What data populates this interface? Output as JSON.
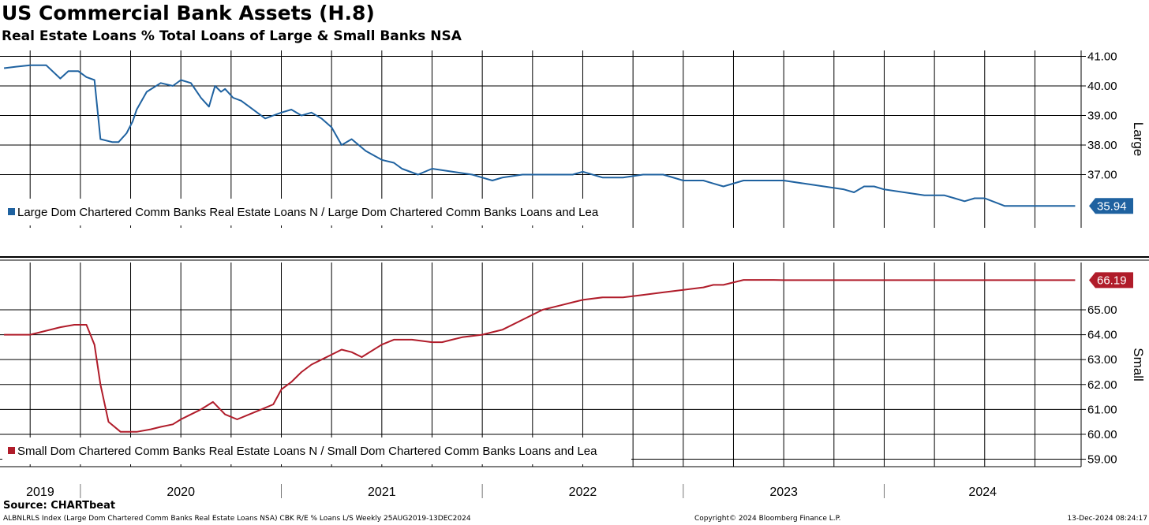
{
  "title": "US Commercial Bank Assets (H.8)",
  "subtitle": "Real Estate Loans % Total Loans of Large & Small Banks NSA",
  "footer": {
    "source": "Source: CHARTbeat",
    "index_info": "ALBNLRLS Index (Large Dom Chartered Comm Banks Real Estate Loans NSA) CBK R/E % Loans L/S  Weekly 25AUG2019-13DEC2024",
    "copyright": "Copyright© 2024 Bloomberg Finance L.P.",
    "timestamp": "13-Dec-2024 08:24:17"
  },
  "colors": {
    "large": "#1f62a0",
    "small": "#b01c2a",
    "grid": "#000000"
  },
  "chart_data": [
    {
      "type": "line",
      "panel": "top",
      "axis_side_label": "Large",
      "legend": "Large Dom Chartered Comm Banks Real Estate Loans N / Large Dom Chartered Comm Banks Loans and Lea",
      "ylim": [
        35.2,
        41.2
      ],
      "yticks": [
        "41.00",
        "40.00",
        "39.00",
        "38.00",
        "37.00"
      ],
      "ytick_values": [
        41,
        40,
        39,
        38,
        37
      ],
      "last_value": "35.94",
      "xlim": [
        2019.6,
        2024.98
      ],
      "x_labels": [
        "2019",
        "2020",
        "2021",
        "2022",
        "2023",
        "2024"
      ],
      "series": [
        {
          "name": "Large",
          "x": [
            2019.62,
            2019.68,
            2019.75,
            2019.83,
            2019.9,
            2019.94,
            2019.96,
            2019.99,
            2020.03,
            2020.07,
            2020.1,
            2020.16,
            2020.19,
            2020.23,
            2020.26,
            2020.28,
            2020.33,
            2020.4,
            2020.46,
            2020.5,
            2020.55,
            2020.6,
            2020.64,
            2020.67,
            2020.7,
            2020.72,
            2020.76,
            2020.8,
            2020.84,
            2020.88,
            2020.92,
            2020.96,
            2021.0,
            2021.05,
            2021.1,
            2021.15,
            2021.2,
            2021.25,
            2021.3,
            2021.35,
            2021.42,
            2021.5,
            2021.56,
            2021.6,
            2021.68,
            2021.75,
            2021.85,
            2021.95,
            2022.0,
            2022.05,
            2022.1,
            2022.2,
            2022.3,
            2022.4,
            2022.45,
            2022.5,
            2022.6,
            2022.7,
            2022.8,
            2022.9,
            2023.0,
            2023.1,
            2023.15,
            2023.2,
            2023.3,
            2023.4,
            2023.45,
            2023.5,
            2023.6,
            2023.7,
            2023.8,
            2023.85,
            2023.9,
            2023.95,
            2024.0,
            2024.1,
            2024.2,
            2024.3,
            2024.35,
            2024.4,
            2024.45,
            2024.5,
            2024.6,
            2024.65,
            2024.7,
            2024.75,
            2024.8,
            2024.85,
            2024.9,
            2024.95
          ],
          "values": [
            40.6,
            40.65,
            40.7,
            40.7,
            40.25,
            40.5,
            40.5,
            40.5,
            40.3,
            40.2,
            38.2,
            38.1,
            38.1,
            38.4,
            38.8,
            39.2,
            39.8,
            40.1,
            40.0,
            40.2,
            40.1,
            39.6,
            39.3,
            40.0,
            39.8,
            39.9,
            39.6,
            39.5,
            39.3,
            39.1,
            38.9,
            39.0,
            39.1,
            39.2,
            39.0,
            39.1,
            38.9,
            38.6,
            38.0,
            38.2,
            37.8,
            37.5,
            37.4,
            37.2,
            37.0,
            37.2,
            37.1,
            37.0,
            36.9,
            36.8,
            36.9,
            37.0,
            37.0,
            37.0,
            37.0,
            37.1,
            36.9,
            36.9,
            37.0,
            37.0,
            36.8,
            36.8,
            36.7,
            36.6,
            36.8,
            36.8,
            36.8,
            36.8,
            36.7,
            36.6,
            36.5,
            36.4,
            36.6,
            36.6,
            36.5,
            36.4,
            36.3,
            36.3,
            36.2,
            36.1,
            36.2,
            36.2,
            35.94,
            35.94,
            35.94,
            35.94,
            35.94,
            35.94,
            35.94,
            35.94
          ]
        }
      ]
    },
    {
      "type": "line",
      "panel": "bottom",
      "axis_side_label": "Small",
      "legend": "Small Dom Chartered Comm Banks Real Estate Loans N / Small Dom Chartered Comm Banks Loans and Lea",
      "ylim": [
        58.7,
        66.9
      ],
      "yticks": [
        "65.00",
        "64.00",
        "63.00",
        "62.00",
        "61.00",
        "60.00",
        "59.00"
      ],
      "ytick_values": [
        65,
        64,
        63,
        62,
        61,
        60,
        59
      ],
      "last_value": "66.19",
      "xlim": [
        2019.6,
        2024.98
      ],
      "x_labels": [
        "2019",
        "2020",
        "2021",
        "2022",
        "2023",
        "2024"
      ],
      "series": [
        {
          "name": "Small",
          "x": [
            2019.62,
            2019.75,
            2019.9,
            2019.97,
            2020.03,
            2020.07,
            2020.1,
            2020.14,
            2020.2,
            2020.28,
            2020.35,
            2020.4,
            2020.46,
            2020.5,
            2020.55,
            2020.6,
            2020.66,
            2020.72,
            2020.78,
            2020.84,
            2020.9,
            2020.96,
            2021.0,
            2021.05,
            2021.1,
            2021.15,
            2021.2,
            2021.25,
            2021.3,
            2021.35,
            2021.4,
            2021.5,
            2021.56,
            2021.65,
            2021.75,
            2021.8,
            2021.85,
            2021.9,
            2022.0,
            2022.05,
            2022.1,
            2022.2,
            2022.3,
            2022.4,
            2022.45,
            2022.5,
            2022.6,
            2022.7,
            2022.8,
            2022.9,
            2023.0,
            2023.1,
            2023.15,
            2023.2,
            2023.3,
            2023.4,
            2023.45,
            2023.5,
            2023.6,
            2023.7,
            2023.8,
            2023.85,
            2023.9,
            2024.0,
            2024.1,
            2024.2,
            2024.3,
            2024.4,
            2024.5,
            2024.6,
            2024.7,
            2024.75,
            2024.8,
            2024.85,
            2024.9,
            2024.95
          ],
          "values": [
            64.0,
            64.0,
            64.3,
            64.4,
            64.4,
            63.6,
            62.0,
            60.5,
            60.1,
            60.1,
            60.2,
            60.3,
            60.4,
            60.6,
            60.8,
            61.0,
            61.3,
            60.8,
            60.6,
            60.8,
            61.0,
            61.2,
            61.8,
            62.1,
            62.5,
            62.8,
            63.0,
            63.2,
            63.4,
            63.3,
            63.1,
            63.6,
            63.8,
            63.8,
            63.7,
            63.7,
            63.8,
            63.9,
            64.0,
            64.1,
            64.2,
            64.6,
            65.0,
            65.2,
            65.3,
            65.4,
            65.5,
            65.5,
            65.6,
            65.7,
            65.8,
            65.9,
            66.0,
            66.0,
            66.2,
            66.2,
            66.2,
            66.19,
            66.19,
            66.19,
            66.19,
            66.19,
            66.19,
            66.19,
            66.19,
            66.19,
            66.19,
            66.19,
            66.19,
            66.19,
            66.19,
            66.19,
            66.19,
            66.19,
            66.19,
            66.19
          ]
        }
      ]
    }
  ]
}
